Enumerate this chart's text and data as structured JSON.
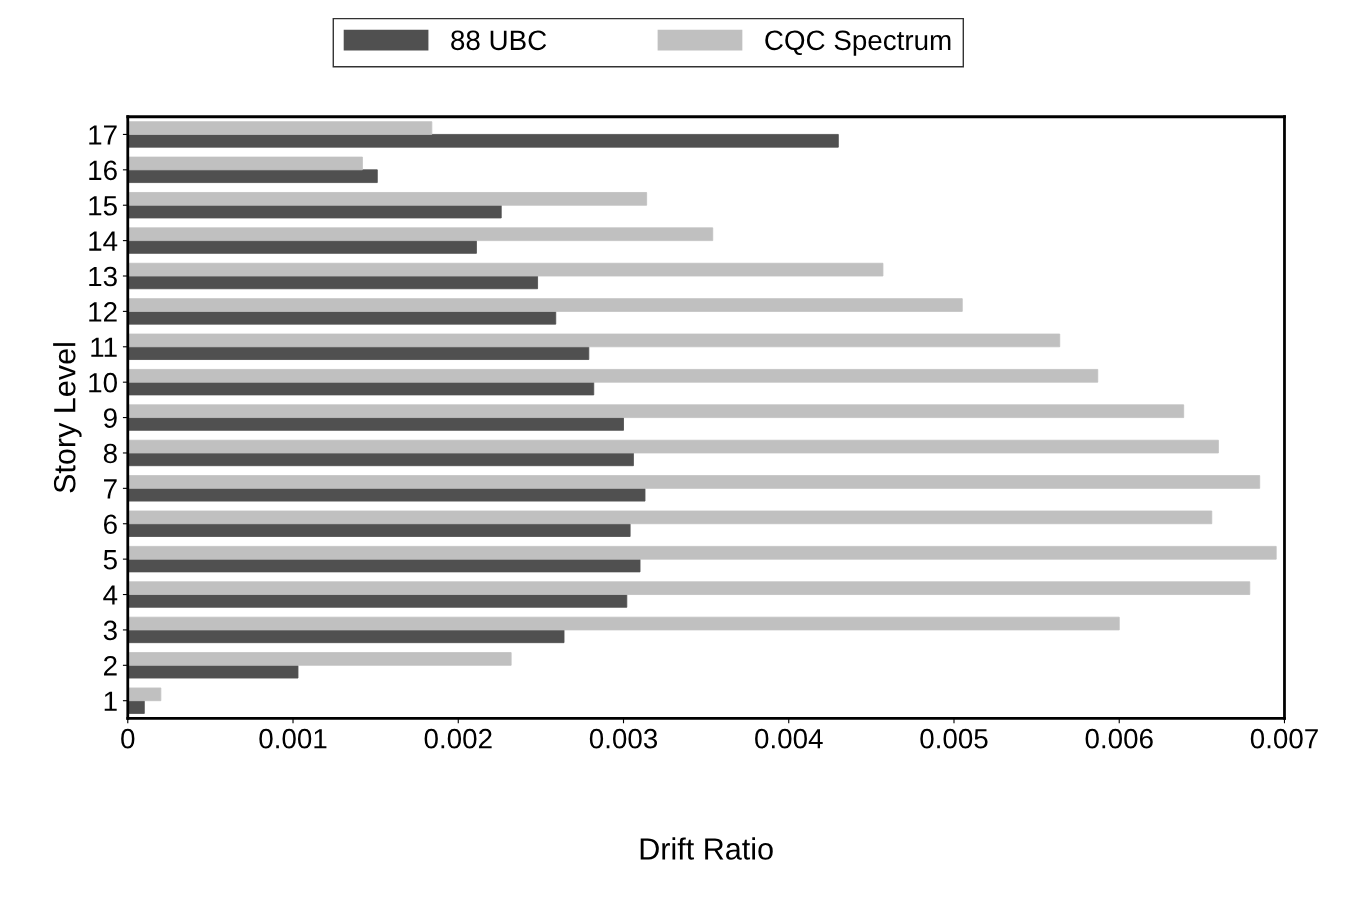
{
  "chart_data": {
    "type": "bar",
    "orientation": "horizontal",
    "xlabel": "Drift Ratio",
    "ylabel": "Story Level",
    "categories": [
      "17",
      "16",
      "15",
      "14",
      "13",
      "12",
      "11",
      "10",
      "9",
      "8",
      "7",
      "6",
      "5",
      "4",
      "3",
      "2",
      "1"
    ],
    "series": [
      {
        "name": "88 UBC",
        "color": "#505050",
        "values": [
          0.0043,
          0.00151,
          0.00226,
          0.00211,
          0.00248,
          0.00259,
          0.00279,
          0.00282,
          0.003,
          0.00306,
          0.00313,
          0.00304,
          0.0031,
          0.00302,
          0.00264,
          0.00103,
          0.0001
        ]
      },
      {
        "name": "CQC Spectrum",
        "color": "#c0c0c0",
        "values": [
          0.00184,
          0.00142,
          0.00314,
          0.00354,
          0.00457,
          0.00505,
          0.00564,
          0.00587,
          0.00639,
          0.0066,
          0.00685,
          0.00656,
          0.00695,
          0.00679,
          0.006,
          0.00232,
          0.0002
        ]
      }
    ],
    "xlim": [
      0,
      0.007
    ],
    "xticks": [
      0,
      0.001,
      0.002,
      0.003,
      0.004,
      0.005,
      0.006,
      0.007
    ],
    "grid": false,
    "legend": "top"
  }
}
